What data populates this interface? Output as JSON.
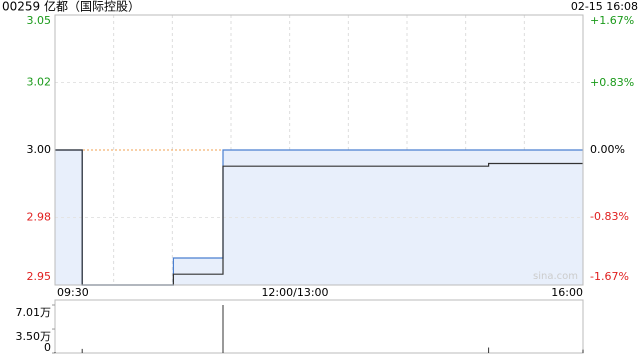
{
  "chart_data": [
    {
      "type": "line",
      "title": "00259 亿都（国际控股）",
      "timestamp": "02-15 16:08",
      "watermark": "sina.com",
      "x": [
        0,
        17,
        17,
        74,
        74,
        105,
        105,
        271,
        271,
        330
      ],
      "xlim": [
        0,
        330
      ],
      "xticks": [
        {
          "value": 0,
          "label": "09:30"
        },
        {
          "value": 150,
          "label": "12:00/13:00"
        },
        {
          "value": 330,
          "label": "16:00"
        }
      ],
      "series": [
        {
          "color": "#4a7fd0",
          "fill": "#e8effb",
          "values": [
            3.0,
            3.0,
            2.95,
            2.95,
            2.96,
            2.96,
            3.0,
            3.0,
            3.0,
            3.0
          ]
        },
        {
          "color": "#333333",
          "values": [
            3.0,
            3.0,
            2.95,
            2.95,
            2.954,
            2.954,
            2.994,
            2.994,
            2.995,
            2.995
          ]
        }
      ],
      "ylim": [
        2.95,
        3.05
      ],
      "yticks": [
        3.05,
        {
          "value": 3.025,
          "label": "3.02"
        },
        {
          "value": 3.0,
          "label": "3.00"
        },
        {
          "value": 2.975,
          "label": "2.98"
        },
        2.95
      ],
      "y2lim": [
        -1.67,
        1.67
      ],
      "y2ticks": [
        {
          "value": 1.67,
          "label": "+1.67%"
        },
        {
          "value": 0.83,
          "label": "+0.83%"
        },
        {
          "value": 0,
          "label": "0.00%"
        },
        {
          "value": -0.83,
          "label": "-0.83%"
        },
        {
          "value": -1.67,
          "label": "-1.67%"
        }
      ],
      "reference": 3.0,
      "reference_color": "#f0a050",
      "up_color": "#1a9a1a",
      "down_color": "#e02020",
      "grid": true
    },
    {
      "type": "bar",
      "x": [
        0,
        17,
        105,
        271,
        330
      ],
      "xlim": [
        0,
        330
      ],
      "values": [
        1500,
        6000,
        70100,
        8000,
        5000
      ],
      "color": "#333333",
      "ylim": [
        0,
        70100
      ],
      "yticks": [
        {
          "value": 70100,
          "label": "7.01万"
        },
        {
          "value": 35000,
          "label": "3.50万"
        },
        0
      ]
    }
  ]
}
